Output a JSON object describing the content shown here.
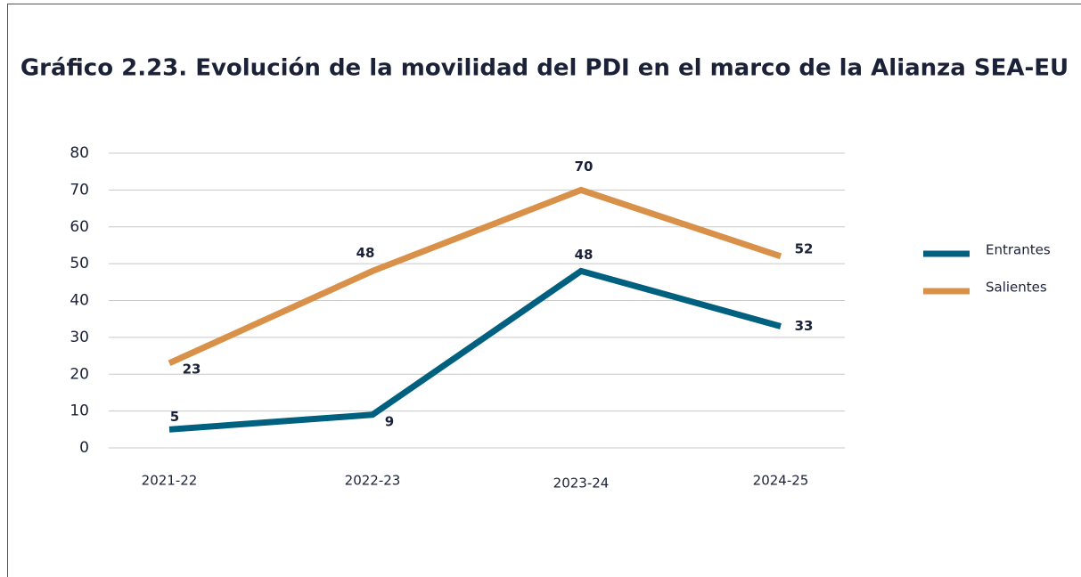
{
  "chart_data": {
    "type": "line",
    "title": "Gráfico 2.23. Evolución de la movilidad del PDI en el marco de la Alianza SEA-EU",
    "categories": [
      "2021-22",
      "2022-23",
      "2023-24",
      "2024-25"
    ],
    "series": [
      {
        "name": "Entrantes",
        "color": "#00607f",
        "values": [
          5,
          9,
          48,
          33
        ]
      },
      {
        "name": "Salientes",
        "color": "#d9914a",
        "values": [
          23,
          48,
          70,
          52
        ]
      }
    ],
    "ylim": [
      0,
      80
    ],
    "yticks": [
      0,
      10,
      20,
      30,
      40,
      50,
      60,
      70,
      80
    ],
    "grid": true,
    "legend": "right"
  }
}
